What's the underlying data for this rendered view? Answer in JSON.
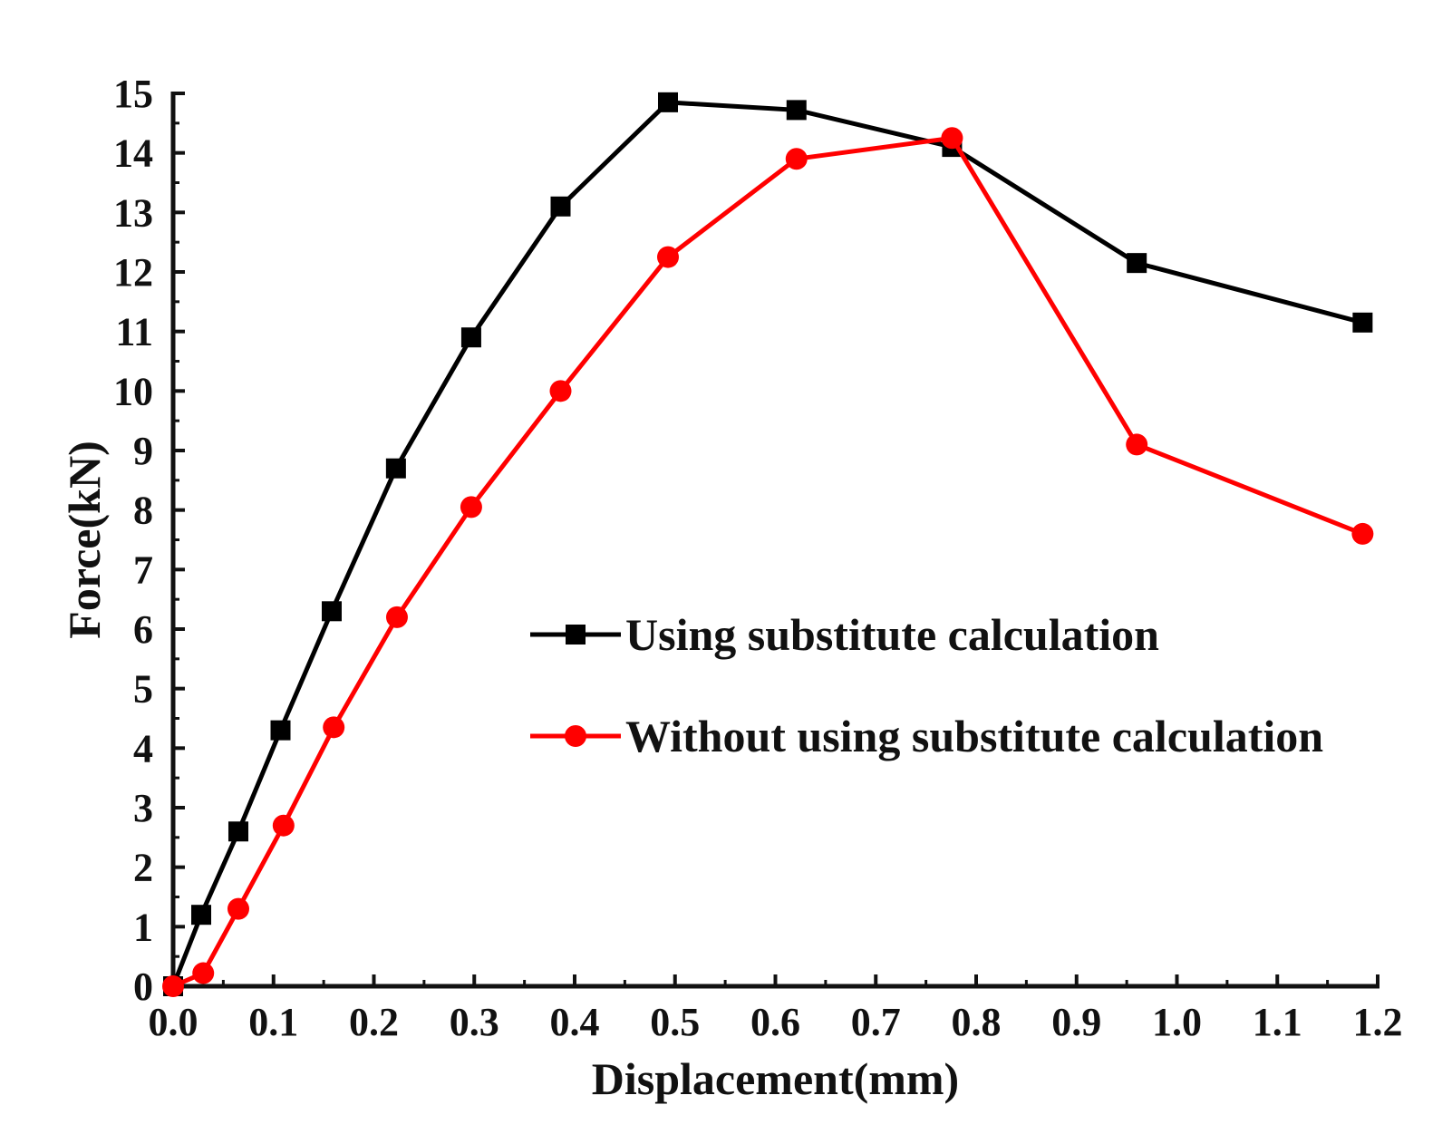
{
  "chart_data": {
    "type": "line",
    "title": "",
    "xlabel": "Displacement(mm)",
    "ylabel": "Force(kN)",
    "xlim": [
      0.0,
      1.2
    ],
    "ylim": [
      0,
      15
    ],
    "grid": false,
    "legend_position": "center-right",
    "x_ticks": [
      "0.0",
      "0.1",
      "0.2",
      "0.3",
      "0.4",
      "0.5",
      "0.6",
      "0.7",
      "0.8",
      "0.9",
      "1.0",
      "1.1",
      "1.2"
    ],
    "y_ticks": [
      "0",
      "1",
      "2",
      "3",
      "4",
      "5",
      "6",
      "7",
      "8",
      "9",
      "10",
      "11",
      "12",
      "13",
      "14",
      "15"
    ],
    "series": [
      {
        "name": "Using substitute calculation",
        "color": "#000000",
        "marker": "square",
        "x": [
          0.0,
          0.028,
          0.065,
          0.107,
          0.158,
          0.222,
          0.297,
          0.386,
          0.493,
          0.621,
          0.776,
          0.96,
          1.185
        ],
        "y": [
          0.0,
          1.2,
          2.6,
          4.3,
          6.3,
          8.7,
          10.9,
          13.1,
          14.85,
          14.72,
          14.1,
          12.15,
          11.15
        ]
      },
      {
        "name": "Without using substitute calculation",
        "color": "#ff0000",
        "marker": "circle",
        "x": [
          0.0,
          0.03,
          0.065,
          0.11,
          0.16,
          0.223,
          0.297,
          0.386,
          0.493,
          0.621,
          0.776,
          0.96,
          1.185
        ],
        "y": [
          0.0,
          0.22,
          1.3,
          2.7,
          4.35,
          6.2,
          8.05,
          10.0,
          12.25,
          13.9,
          14.25,
          9.1,
          7.6
        ]
      }
    ]
  }
}
